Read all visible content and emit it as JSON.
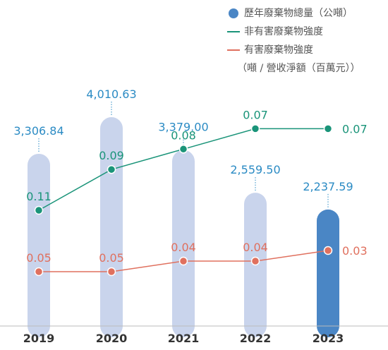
{
  "legend": {
    "total_label": "歷年廢棄物總量（公噸）",
    "nonhaz_label": "非有害廢棄物強度",
    "haz_label": "有害廢棄物強度",
    "intensity_unit": "（噸 / 營收淨額（百萬元））"
  },
  "chart_data": {
    "type": "bar",
    "categories": [
      "2019",
      "2020",
      "2021",
      "2022",
      "2023"
    ],
    "bar_series": {
      "name": "歷年廢棄物總量（公噸）",
      "values": [
        3306.84,
        4010.63,
        3379.0,
        2559.5,
        2237.59
      ],
      "labels": [
        "3,306.84",
        "4,010.63",
        "3,379.00",
        "2,559.50",
        "2,237.59"
      ]
    },
    "line_series": [
      {
        "name": "非有害廢棄物強度",
        "values": [
          0.11,
          0.09,
          0.08,
          0.07,
          0.07
        ],
        "labels": [
          "0.11",
          "0.09",
          "0.08",
          "0.07",
          "0.07"
        ]
      },
      {
        "name": "有害廢棄物強度",
        "values": [
          0.05,
          0.05,
          0.04,
          0.04,
          0.03
        ],
        "labels": [
          "0.05",
          "0.05",
          "0.04",
          "0.04",
          "0.03"
        ]
      }
    ],
    "colors": {
      "bar": "#c9d4ec",
      "bar_highlight": "#4a86c5",
      "bar_value_text": "#2b8bc4",
      "nonhaz": "#1a9479",
      "haz": "#e0705e",
      "year_text": "#333333",
      "axis": "#bbbbbb",
      "legend_text": "#555555"
    }
  }
}
